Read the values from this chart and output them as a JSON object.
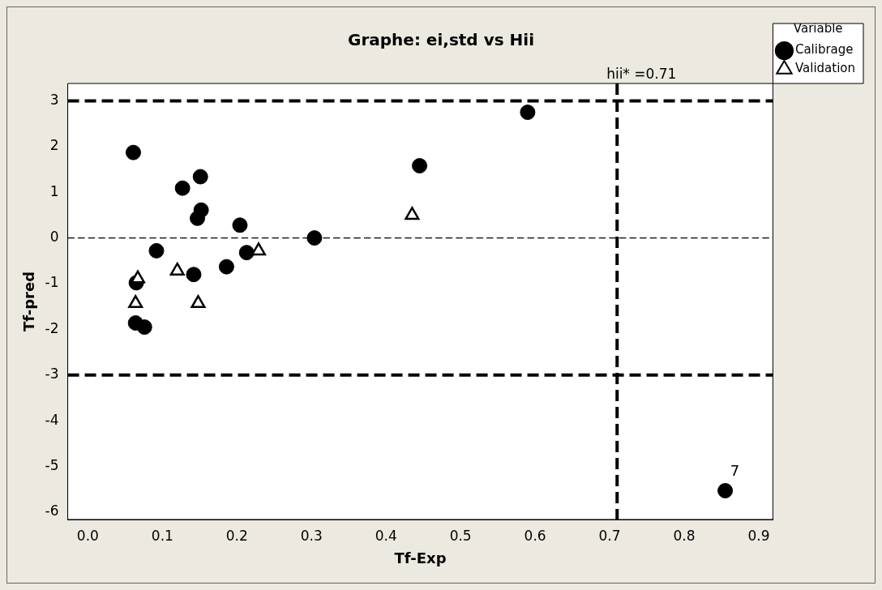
{
  "chart_data": {
    "type": "scatter",
    "title": "Graphe: ei,std vs Hii",
    "xlabel": "Tf-Exp",
    "ylabel": "Tf-pred",
    "legend_title": "Variable",
    "legend": "top right",
    "grid": false,
    "xlim": [
      -0.027,
      0.919
    ],
    "xticks": [
      {
        "value": 0,
        "label": "0.0"
      },
      0.1,
      0.2,
      0.3,
      0.4,
      0.5,
      0.6,
      0.7,
      0.8,
      0.9
    ],
    "ylim": [
      -6.16,
      3.38
    ],
    "yticks": [
      -6,
      -5,
      -4,
      -3,
      -2,
      -1,
      0,
      1,
      2,
      3
    ],
    "series": [
      {
        "name": "Calibrage",
        "color": "#000000",
        "marker": "circle",
        "x": [
          0.061,
          0.151,
          0.127,
          0.152,
          0.147,
          0.204,
          0.092,
          0.213,
          0.186,
          0.142,
          0.065,
          0.064,
          0.076,
          0.304,
          0.445,
          0.59,
          0.855
        ],
        "values": [
          1.87,
          1.34,
          1.09,
          0.61,
          0.43,
          0.28,
          -0.28,
          -0.32,
          -0.63,
          -0.8,
          -0.98,
          -1.86,
          -1.95,
          0.0,
          1.58,
          2.75,
          -5.53
        ]
      },
      {
        "name": "Validation",
        "color": "#000000",
        "marker": "triangle",
        "x": [
          0.067,
          0.12,
          0.064,
          0.148,
          0.229,
          0.435
        ],
        "values": [
          -0.89,
          -0.72,
          -1.43,
          -1.43,
          -0.28,
          0.5
        ]
      }
    ],
    "ref_lines": [
      {
        "axis": "y",
        "value": 3,
        "line_style": "dashed",
        "color": "#000000"
      },
      {
        "axis": "y",
        "value": -3,
        "line_style": "dashed",
        "color": "#000000"
      },
      {
        "axis": "y",
        "value": 0,
        "line_style": "dashed",
        "color": "#000000"
      },
      {
        "axis": "x",
        "value": 0.71,
        "label": "hii* =0.71",
        "line_style": "dashed",
        "color": "#000000"
      }
    ],
    "annotations": [
      {
        "text": "7",
        "x": 0.855,
        "y": -5.53
      }
    ]
  }
}
